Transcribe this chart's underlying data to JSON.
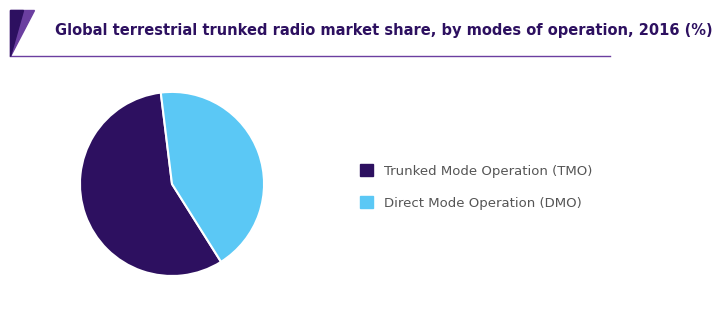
{
  "title": "Global terrestrial trunked radio market share, by modes of operation, 2016 (%)",
  "title_color": "#2d1060",
  "title_fontsize": 10.5,
  "slices": [
    57,
    43
  ],
  "labels": [
    "Trunked Mode Operation (TMO)",
    "Direct Mode Operation (DMO)"
  ],
  "colors": [
    "#2d1060",
    "#5bc8f5"
  ],
  "legend_fontsize": 9.5,
  "legend_text_color": "#555555",
  "background_color": "#ffffff",
  "startangle": 97,
  "header_line_color": "#6b3fa0",
  "triangle_dark": "#2d1060",
  "triangle_light": "#6b3fa0"
}
